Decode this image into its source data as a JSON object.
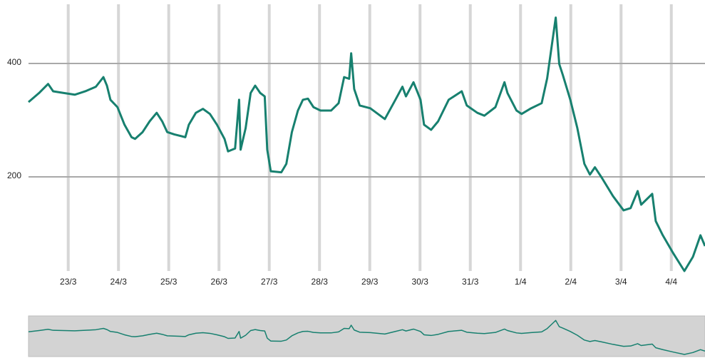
{
  "chart_data": {
    "type": "line",
    "x": [
      22.21,
      22.42,
      22.6,
      22.7,
      22.91,
      23.13,
      23.34,
      23.55,
      23.7,
      23.77,
      23.84,
      23.98,
      24.12,
      24.26,
      24.33,
      24.48,
      24.62,
      24.76,
      24.87,
      24.97,
      25.11,
      25.33,
      25.4,
      25.54,
      25.68,
      25.82,
      25.96,
      26.11,
      26.18,
      26.32,
      26.4,
      26.43,
      26.53,
      26.63,
      26.72,
      26.82,
      26.91,
      26.96,
      27.03,
      27.24,
      27.34,
      27.45,
      27.57,
      27.67,
      27.77,
      27.88,
      28.02,
      28.23,
      28.38,
      28.49,
      28.59,
      28.63,
      28.69,
      28.8,
      29.01,
      29.3,
      29.51,
      29.65,
      29.72,
      29.87,
      30.01,
      30.08,
      30.22,
      30.36,
      30.57,
      30.83,
      30.93,
      31.14,
      31.28,
      31.5,
      31.68,
      31.74,
      31.92,
      32.02,
      32.21,
      32.42,
      32.53,
      32.63,
      32.7,
      32.77,
      32.84,
      32.99,
      33.13,
      33.27,
      33.38,
      33.48,
      33.62,
      33.84,
      34.05,
      34.19,
      34.33,
      34.4,
      34.62,
      34.69,
      34.83,
      35.04,
      35.26,
      35.43,
      35.58,
      35.67
    ],
    "series": [
      {
        "color": "#17806f",
        "values": [
          332,
          348,
          364,
          351,
          348,
          345,
          351,
          359,
          376,
          361,
          336,
          323,
          292,
          270,
          267,
          279,
          298,
          313,
          298,
          279,
          275,
          270,
          292,
          313,
          320,
          311,
          292,
          267,
          245,
          250,
          336,
          248,
          286,
          348,
          361,
          348,
          342,
          248,
          210,
          208,
          223,
          279,
          317,
          336,
          338,
          323,
          317,
          317,
          330,
          376,
          373,
          418,
          355,
          326,
          321,
          302,
          336,
          359,
          342,
          367,
          336,
          292,
          283,
          298,
          336,
          351,
          326,
          313,
          308,
          323,
          367,
          348,
          317,
          311,
          321,
          330,
          374,
          437,
          481,
          399,
          380,
          336,
          286,
          223,
          204,
          217,
          198,
          166,
          141,
          145,
          175,
          151,
          170,
          122,
          97,
          65,
          34,
          59,
          97,
          78
        ]
      }
    ],
    "xlim": [
      22.21,
      35.67
    ],
    "xticks": [
      {
        "value": 23,
        "label": "23/3"
      },
      {
        "value": 24,
        "label": "24/3"
      },
      {
        "value": 25,
        "label": "25/3"
      },
      {
        "value": 26,
        "label": "26/3"
      },
      {
        "value": 27,
        "label": "27/3"
      },
      {
        "value": 28,
        "label": "28/3"
      },
      {
        "value": 29,
        "label": "29/3"
      },
      {
        "value": 30,
        "label": "30/3"
      },
      {
        "value": 31,
        "label": "31/3"
      },
      {
        "value": 32,
        "label": "1/4"
      },
      {
        "value": 33,
        "label": "2/4"
      },
      {
        "value": 34,
        "label": "3/4"
      },
      {
        "value": 35,
        "label": "4/4"
      }
    ],
    "ylim": [
      34,
      512
    ],
    "yticks": [
      200,
      400
    ],
    "grid": true,
    "navigator": true
  }
}
